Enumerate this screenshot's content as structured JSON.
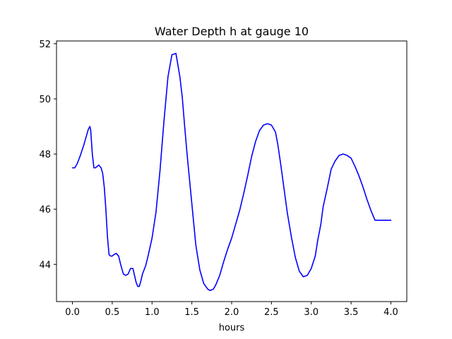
{
  "chart_data": {
    "type": "line",
    "title": "Water Depth h at gauge 10",
    "xlabel": "hours",
    "ylabel": "",
    "xlim": [
      -0.2,
      4.2
    ],
    "ylim": [
      42.65,
      52.1
    ],
    "xticks": [
      0.0,
      0.5,
      1.0,
      1.5,
      2.0,
      2.5,
      3.0,
      3.5,
      4.0
    ],
    "xtick_labels": [
      "0.0",
      "0.5",
      "1.0",
      "1.5",
      "2.0",
      "2.5",
      "3.0",
      "3.5",
      "4.0"
    ],
    "yticks": [
      44,
      46,
      48,
      50,
      52
    ],
    "ytick_labels": [
      "44",
      "46",
      "48",
      "50",
      "52"
    ],
    "grid": false,
    "legend": "none",
    "series": [
      {
        "color": "#0000ff",
        "x": [
          0.0,
          0.03,
          0.06,
          0.1,
          0.14,
          0.17,
          0.2,
          0.22,
          0.23,
          0.25,
          0.27,
          0.29,
          0.31,
          0.33,
          0.36,
          0.38,
          0.4,
          0.42,
          0.44,
          0.46,
          0.48,
          0.5,
          0.52,
          0.55,
          0.58,
          0.61,
          0.64,
          0.67,
          0.7,
          0.73,
          0.76,
          0.78,
          0.8,
          0.82,
          0.84,
          0.86,
          0.88,
          0.9,
          0.92,
          0.95,
          1.0,
          1.05,
          1.1,
          1.15,
          1.2,
          1.25,
          1.3,
          1.35,
          1.38,
          1.41,
          1.44,
          1.5,
          1.55,
          1.6,
          1.65,
          1.7,
          1.73,
          1.77,
          1.8,
          1.85,
          1.9,
          1.95,
          2.0,
          2.05,
          2.1,
          2.15,
          2.2,
          2.25,
          2.3,
          2.35,
          2.4,
          2.45,
          2.5,
          2.55,
          2.58,
          2.62,
          2.66,
          2.7,
          2.75,
          2.8,
          2.85,
          2.9,
          2.95,
          3.0,
          3.05,
          3.08,
          3.12,
          3.15,
          3.2,
          3.25,
          3.3,
          3.35,
          3.4,
          3.45,
          3.5,
          3.55,
          3.6,
          3.65,
          3.7,
          3.75,
          3.8,
          3.85,
          3.9,
          3.95,
          4.0
        ],
        "y": [
          47.5,
          47.5,
          47.65,
          47.95,
          48.3,
          48.6,
          48.9,
          49.0,
          48.85,
          48.0,
          47.5,
          47.5,
          47.55,
          47.6,
          47.5,
          47.3,
          46.8,
          46.0,
          45.0,
          44.35,
          44.3,
          44.3,
          44.35,
          44.4,
          44.3,
          43.95,
          43.65,
          43.6,
          43.65,
          43.85,
          43.85,
          43.6,
          43.35,
          43.2,
          43.2,
          43.4,
          43.65,
          43.8,
          43.95,
          44.3,
          44.95,
          45.9,
          47.4,
          49.2,
          50.8,
          51.6,
          51.65,
          50.8,
          50.05,
          49.0,
          48.0,
          46.2,
          44.7,
          43.8,
          43.3,
          43.1,
          43.05,
          43.1,
          43.25,
          43.6,
          44.1,
          44.55,
          44.95,
          45.45,
          45.95,
          46.55,
          47.2,
          47.9,
          48.45,
          48.85,
          49.05,
          49.1,
          49.05,
          48.8,
          48.35,
          47.55,
          46.7,
          45.85,
          45.0,
          44.25,
          43.75,
          43.55,
          43.6,
          43.85,
          44.3,
          44.85,
          45.45,
          46.1,
          46.75,
          47.45,
          47.75,
          47.95,
          48.0,
          47.95,
          47.85,
          47.55,
          47.2,
          46.8,
          46.35,
          45.95,
          45.6,
          45.6,
          45.6,
          45.6,
          45.6
        ]
      }
    ]
  }
}
